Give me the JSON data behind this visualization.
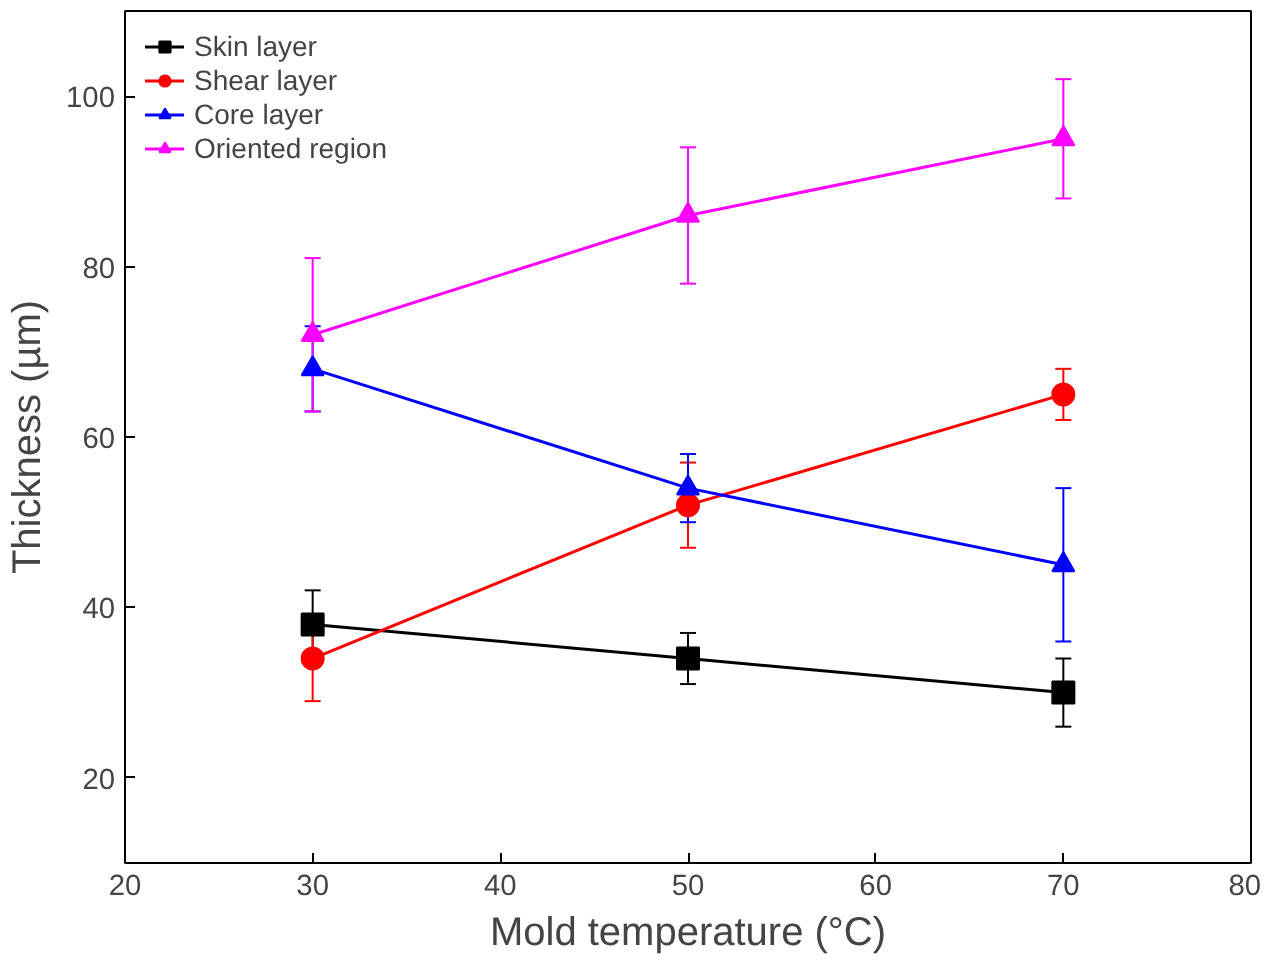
{
  "chart_data": {
    "type": "line",
    "xlabel": "Mold temperature (°C)",
    "ylabel": "Thickness (µm)",
    "x": [
      30,
      50,
      70
    ],
    "xlim": [
      20,
      80
    ],
    "xticks": [
      20,
      30,
      40,
      50,
      60,
      70,
      80
    ],
    "ylim": [
      10,
      110
    ],
    "yticks": [
      20,
      40,
      60,
      80,
      100
    ],
    "grid": false,
    "legend": "top left",
    "series": [
      {
        "name": "Skin layer",
        "color": "#000000",
        "marker": "square",
        "values": [
          38,
          34,
          30
        ],
        "errors": [
          4,
          3,
          4
        ]
      },
      {
        "name": "Shear layer",
        "color": "#ff0000",
        "marker": "circle",
        "values": [
          34,
          52,
          65
        ],
        "errors": [
          5,
          5,
          3
        ]
      },
      {
        "name": "Core layer",
        "color": "#0000ff",
        "marker": "triangle",
        "values": [
          68,
          54,
          45
        ],
        "errors": [
          5,
          4,
          9
        ]
      },
      {
        "name": "Oriented region",
        "color": "#ff00ff",
        "marker": "triangle",
        "values": [
          72,
          86,
          95
        ],
        "errors": [
          9,
          8,
          7
        ]
      }
    ]
  }
}
